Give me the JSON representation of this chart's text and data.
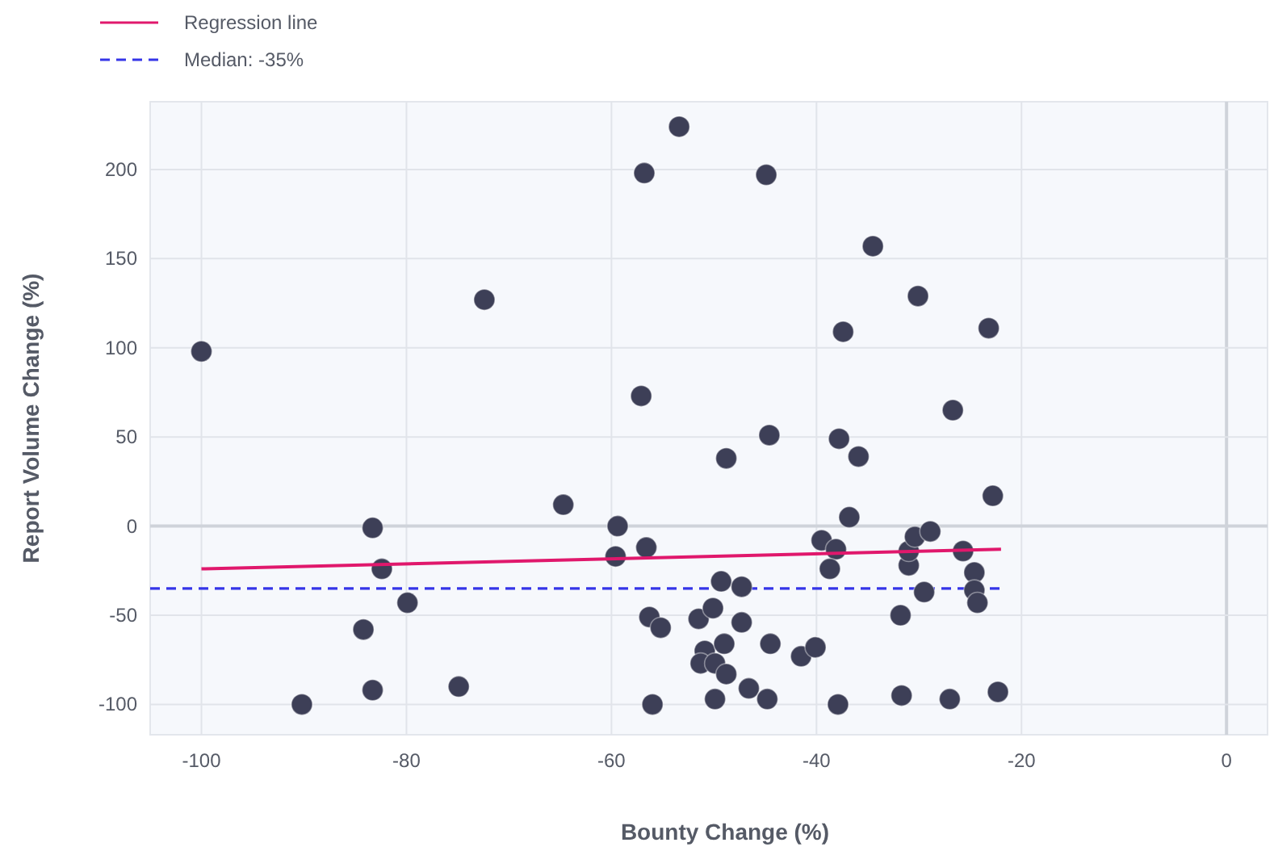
{
  "chart_data": {
    "type": "scatter",
    "xlabel": "Bounty Change (%)",
    "ylabel": "Report Volume Change (%)",
    "xlim": [
      -105,
      4
    ],
    "ylim": [
      -117,
      238
    ],
    "xticks": [
      -100,
      -80,
      -60,
      -40,
      -20,
      0
    ],
    "yticks": [
      -100,
      -50,
      0,
      50,
      100,
      150,
      200
    ],
    "grid": true,
    "legend": "top left",
    "marker": "circle",
    "series": [
      {
        "color": "#3d3f57",
        "x": [
          -100,
          -90.2,
          -83.3,
          -83.3,
          -82.4,
          -84.2,
          -79.9,
          -74.9,
          -72.4,
          -64.7,
          -59.4,
          -59.6,
          -56.8,
          -57.1,
          -56.6,
          -56.3,
          -55.2,
          -56,
          -53.4,
          -44.9,
          -48.8,
          -44.6,
          -51.5,
          -50.1,
          -49.3,
          -47.3,
          -47.3,
          -50.9,
          -51.3,
          -49.9,
          -48.8,
          -49,
          -46.6,
          -49.9,
          -44.8,
          -44.5,
          -41.5,
          -40.1,
          -37.9,
          -39.5,
          -38.1,
          -38.7,
          -36.8,
          -37.8,
          -35.9,
          -37.4,
          -34.5,
          -30.1,
          -31.7,
          -31.8,
          -29.5,
          -31,
          -31,
          -30.4,
          -28.9,
          -25.7,
          -24.6,
          -24.6,
          -24.3,
          -27,
          -22.3,
          -22.8,
          -26.7,
          -23.2
        ],
        "values": [
          98,
          -100,
          -92,
          -1,
          -24,
          -58,
          -43,
          -90,
          127,
          12,
          0,
          -17,
          198,
          73,
          -12,
          -51,
          -57,
          -100,
          224,
          197,
          38,
          51,
          -52,
          -46,
          -31,
          -34,
          -54,
          -70,
          -77,
          -77,
          -83,
          -66,
          -91,
          -97,
          -97,
          -66,
          -73,
          -68,
          -100,
          -8,
          -13,
          -24,
          5,
          49,
          39,
          109,
          157,
          129,
          -95,
          -50,
          -37,
          -22,
          -14,
          -6,
          -3,
          -14,
          -26,
          -36,
          -43,
          -97,
          -93,
          17,
          65,
          111
        ]
      },
      {
        "type": "line",
        "name": "Regression line",
        "color": "#e0186c",
        "marker": "none",
        "x": [
          -100,
          -22
        ],
        "values": [
          -24,
          -13
        ]
      }
    ],
    "ref_lines": [
      {
        "axis": "y",
        "value": -35,
        "label": "Median: -35%",
        "color": "#3535e8",
        "line_style": "dashed"
      }
    ]
  }
}
